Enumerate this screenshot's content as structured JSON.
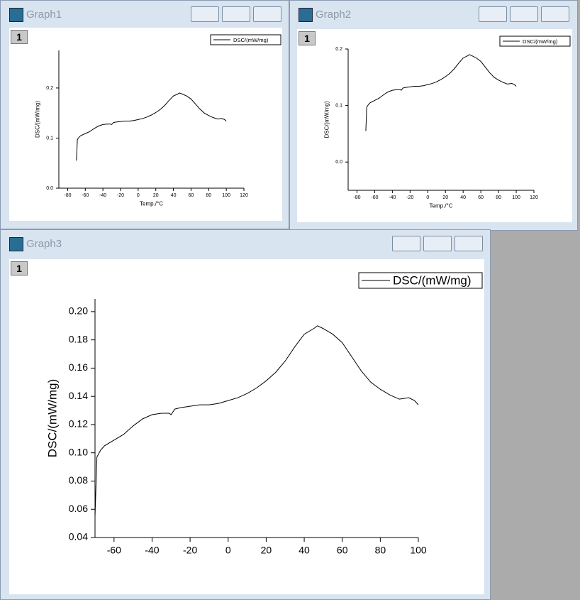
{
  "windows": [
    {
      "title": "Graph1",
      "layer": "1"
    },
    {
      "title": "Graph2",
      "layer": "1"
    },
    {
      "title": "Graph3",
      "layer": "1"
    }
  ],
  "chart_data": [
    {
      "type": "line",
      "x_label": "Temp./°C",
      "y_label": "DSC/(mW/mg)",
      "x": [
        -70,
        -69,
        -67,
        -65,
        -60,
        -55,
        -50,
        -45,
        -40,
        -35,
        -31,
        -30,
        -28,
        -25,
        -20,
        -15,
        -10,
        -5,
        0,
        5,
        10,
        15,
        20,
        25,
        30,
        35,
        40,
        45,
        47,
        50,
        55,
        60,
        65,
        70,
        75,
        80,
        85,
        90,
        95,
        98,
        100
      ],
      "series": [
        {
          "name": "DSC/(mW/mg)",
          "color": "#000000",
          "values": [
            0.055,
            0.097,
            0.102,
            0.105,
            0.109,
            0.113,
            0.119,
            0.124,
            0.127,
            0.128,
            0.128,
            0.127,
            0.131,
            0.132,
            0.133,
            0.134,
            0.134,
            0.135,
            0.137,
            0.139,
            0.142,
            0.146,
            0.151,
            0.157,
            0.165,
            0.175,
            0.184,
            0.188,
            0.19,
            0.188,
            0.184,
            0.178,
            0.168,
            0.158,
            0.15,
            0.145,
            0.141,
            0.138,
            0.139,
            0.137,
            0.134
          ]
        }
      ],
      "xlim": [
        -90,
        120
      ],
      "xticks": [
        -80,
        -60,
        -40,
        -20,
        0,
        20,
        40,
        60,
        80,
        100,
        120
      ],
      "ylim": [
        0,
        0.275
      ],
      "yticks": [
        {
          "value": 0,
          "label": "0.0"
        },
        {
          "value": 0.1,
          "label": "0.1"
        },
        {
          "value": 0.2,
          "label": "0.2"
        }
      ]
    },
    {
      "type": "line",
      "x_label": "Temp./°C",
      "y_label": "DSC/(mW/mg)",
      "x": [
        -70,
        -69,
        -67,
        -65,
        -60,
        -55,
        -50,
        -45,
        -40,
        -35,
        -31,
        -30,
        -28,
        -25,
        -20,
        -15,
        -10,
        -5,
        0,
        5,
        10,
        15,
        20,
        25,
        30,
        35,
        40,
        45,
        47,
        50,
        55,
        60,
        65,
        70,
        75,
        80,
        85,
        90,
        95,
        98,
        100
      ],
      "series": [
        {
          "name": "DSC/(mW/mg)",
          "color": "#000000",
          "values": [
            0.055,
            0.097,
            0.102,
            0.105,
            0.109,
            0.113,
            0.119,
            0.124,
            0.127,
            0.128,
            0.128,
            0.127,
            0.131,
            0.132,
            0.133,
            0.134,
            0.134,
            0.135,
            0.137,
            0.139,
            0.142,
            0.146,
            0.151,
            0.157,
            0.165,
            0.175,
            0.184,
            0.188,
            0.19,
            0.188,
            0.184,
            0.178,
            0.168,
            0.158,
            0.15,
            0.145,
            0.141,
            0.138,
            0.139,
            0.137,
            0.134
          ]
        }
      ],
      "xlim": [
        -90,
        120
      ],
      "xticks": [
        -80,
        -60,
        -40,
        -20,
        0,
        20,
        40,
        60,
        80,
        100,
        120
      ],
      "ylim": [
        -0.05,
        0.2
      ],
      "yticks": [
        {
          "value": 0,
          "label": "0.0"
        },
        {
          "value": 0.1,
          "label": "0.1"
        },
        {
          "value": 0.2,
          "label": "0.2"
        }
      ]
    },
    {
      "type": "line",
      "y_label": "DSC/(mW/mg)",
      "x": [
        -70,
        -69,
        -67,
        -65,
        -60,
        -55,
        -50,
        -45,
        -40,
        -35,
        -31,
        -30,
        -28,
        -25,
        -20,
        -15,
        -10,
        -5,
        0,
        5,
        10,
        15,
        20,
        25,
        30,
        35,
        40,
        45,
        47,
        50,
        55,
        60,
        65,
        70,
        75,
        80,
        85,
        90,
        95,
        98,
        100
      ],
      "series": [
        {
          "name": "DSC/(mW/mg)",
          "color": "#000000",
          "values": [
            0.055,
            0.097,
            0.102,
            0.105,
            0.109,
            0.113,
            0.119,
            0.124,
            0.127,
            0.128,
            0.128,
            0.127,
            0.131,
            0.132,
            0.133,
            0.134,
            0.134,
            0.135,
            0.137,
            0.139,
            0.142,
            0.146,
            0.151,
            0.157,
            0.165,
            0.175,
            0.184,
            0.188,
            0.19,
            0.188,
            0.184,
            0.178,
            0.168,
            0.158,
            0.15,
            0.145,
            0.141,
            0.138,
            0.139,
            0.137,
            0.134
          ]
        }
      ],
      "xlim": [
        -70,
        100
      ],
      "xticks": [
        -60,
        -40,
        -20,
        0,
        20,
        40,
        60,
        80,
        100
      ],
      "ylim": [
        0.04,
        0.209
      ],
      "yticks": [
        {
          "value": 0.04,
          "label": "0.04"
        },
        {
          "value": 0.06,
          "label": "0.06"
        },
        {
          "value": 0.08,
          "label": "0.08"
        },
        {
          "value": 0.1,
          "label": "0.10"
        },
        {
          "value": 0.12,
          "label": "0.12"
        },
        {
          "value": 0.14,
          "label": "0.14"
        },
        {
          "value": 0.16,
          "label": "0.16"
        },
        {
          "value": 0.18,
          "label": "0.18"
        },
        {
          "value": 0.2,
          "label": "0.20"
        }
      ]
    }
  ]
}
